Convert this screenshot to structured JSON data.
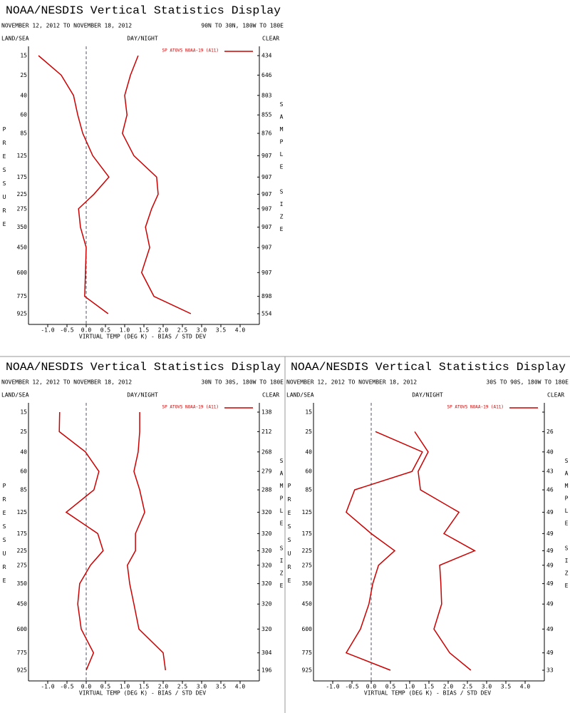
{
  "chart_data": [
    {
      "type": "line",
      "title": "NOAA/NESDIS Vertical Statistics Display",
      "subtitle": "NOVEMBER 12, 2012 TO NOVEMBER 18, 2012",
      "region": "90N TO 30N, 180W TO 180E",
      "land_sea": "LAND/SEA",
      "day_night": "DAY/NIGHT",
      "clear": "CLEAR",
      "ylabel": "PRESSURE",
      "y2label": "SAMPLE SIZE",
      "xlabel": "VIRTUAL TEMP (DEG K) - BIAS / STD DEV",
      "yticks": [
        15,
        25,
        40,
        60,
        85,
        125,
        175,
        225,
        275,
        350,
        450,
        600,
        775,
        925
      ],
      "ylim": [
        15,
        925
      ],
      "xlim": [
        -1.5,
        4.5
      ],
      "xticks": [
        {
          "value": -1,
          "label": "-1.0"
        },
        -0.5,
        {
          "value": 0,
          "label": "0.0"
        },
        0.5,
        {
          "value": 1,
          "label": "1.0"
        },
        1.5,
        {
          "value": 2,
          "label": "2.0"
        },
        2.5,
        {
          "value": 3,
          "label": "3.0"
        },
        3.5,
        {
          "value": 4,
          "label": "4.0"
        }
      ],
      "series": [
        {
          "name": "SP ATOVS NOAA-19 (A11)",
          "color": "#cc0000",
          "values": [
            -1.24,
            -0.65,
            -0.33,
            -0.22,
            -0.09,
            0.17,
            0.59,
            0.2,
            -0.2,
            -0.15,
            0.0,
            -0.02,
            -0.04,
            0.57
          ],
          "std_dev": [
            1.35,
            1.15,
            1.0,
            1.06,
            0.94,
            1.24,
            1.83,
            1.87,
            1.7,
            1.54,
            1.65,
            1.44,
            1.76,
            2.72
          ]
        }
      ],
      "sample_size": [
        434,
        646,
        803,
        855,
        876,
        907,
        907,
        907,
        907,
        907,
        907,
        907,
        898,
        554
      ]
    },
    {
      "type": "line",
      "title": "NOAA/NESDIS Vertical Statistics Display",
      "subtitle": "NOVEMBER 12, 2012 TO NOVEMBER 18, 2012",
      "region": "30N TO 30S, 180W TO 180E",
      "land_sea": "LAND/SEA",
      "day_night": "DAY/NIGHT",
      "clear": "CLEAR",
      "ylabel": "PRESSURE",
      "y2label": "SAMPLE SIZE",
      "xlabel": "VIRTUAL TEMP (DEG K) - BIAS / STD DEV",
      "yticks": [
        15,
        25,
        40,
        60,
        85,
        125,
        175,
        225,
        275,
        350,
        450,
        600,
        775,
        925
      ],
      "ylim": [
        15,
        925
      ],
      "xlim": [
        -1.5,
        4.5
      ],
      "xticks": [
        {
          "value": -1,
          "label": "-1.0"
        },
        -0.5,
        {
          "value": 0,
          "label": "0.0"
        },
        0.5,
        {
          "value": 1,
          "label": "1.0"
        },
        1.5,
        {
          "value": 2,
          "label": "2.0"
        },
        2.5,
        {
          "value": 3,
          "label": "3.0"
        },
        3.5,
        {
          "value": 4,
          "label": "4.0"
        }
      ],
      "series": [
        {
          "name": "SP ATOVS NOAA-19 (A11)",
          "color": "#cc0000",
          "values": [
            -0.69,
            -0.7,
            -0.02,
            0.33,
            0.2,
            -0.52,
            0.3,
            0.44,
            0.11,
            -0.17,
            -0.22,
            -0.13,
            0.19,
            0.0
          ],
          "std_dev": [
            1.39,
            1.39,
            1.35,
            1.24,
            1.39,
            1.52,
            1.28,
            1.28,
            1.07,
            1.13,
            1.24,
            1.37,
            2.0,
            2.06
          ]
        }
      ],
      "sample_size": [
        138,
        212,
        268,
        279,
        288,
        320,
        320,
        320,
        320,
        320,
        320,
        320,
        304,
        196
      ]
    },
    {
      "type": "line",
      "title": "NOAA/NESDIS Vertical Statistics Display",
      "subtitle": "NOVEMBER 12, 2012 TO NOVEMBER 18, 2012",
      "region": "30S TO 90S, 180W TO 180E",
      "land_sea": "LAND/SEA",
      "day_night": "DAY/NIGHT",
      "clear": "CLEAR",
      "ylabel": "PRESSURE",
      "y2label": "SAMPLE SIZE",
      "xlabel": "VIRTUAL TEMP (DEG K) - BIAS / STD DEV",
      "yticks": [
        15,
        25,
        40,
        60,
        85,
        125,
        175,
        225,
        275,
        350,
        450,
        600,
        775,
        925
      ],
      "ylim": [
        15,
        925
      ],
      "xlim": [
        -1.5,
        4.5
      ],
      "xticks": [
        {
          "value": -1,
          "label": "-1.0"
        },
        -0.5,
        {
          "value": 0,
          "label": "0.0"
        },
        0.5,
        {
          "value": 1,
          "label": "1.0"
        },
        1.5,
        {
          "value": 2,
          "label": "2.0"
        },
        2.5,
        {
          "value": 3,
          "label": "3.0"
        },
        3.5,
        {
          "value": 4,
          "label": "4.0"
        }
      ],
      "series": [
        {
          "name": "SP ATOVS NOAA-19 (A11)",
          "color": "#cc0000",
          "values": [
            null,
            0.11,
            1.33,
            1.06,
            -0.43,
            -0.65,
            0.0,
            0.61,
            0.19,
            0.04,
            -0.06,
            -0.28,
            -0.65,
            0.5
          ],
          "std_dev": [
            null,
            1.13,
            1.48,
            1.22,
            1.28,
            2.28,
            1.89,
            2.69,
            1.78,
            1.81,
            1.83,
            1.63,
            2.04,
            2.59
          ]
        }
      ],
      "sample_size": [
        null,
        26,
        40,
        43,
        46,
        49,
        49,
        49,
        49,
        49,
        49,
        49,
        49,
        33
      ]
    }
  ]
}
